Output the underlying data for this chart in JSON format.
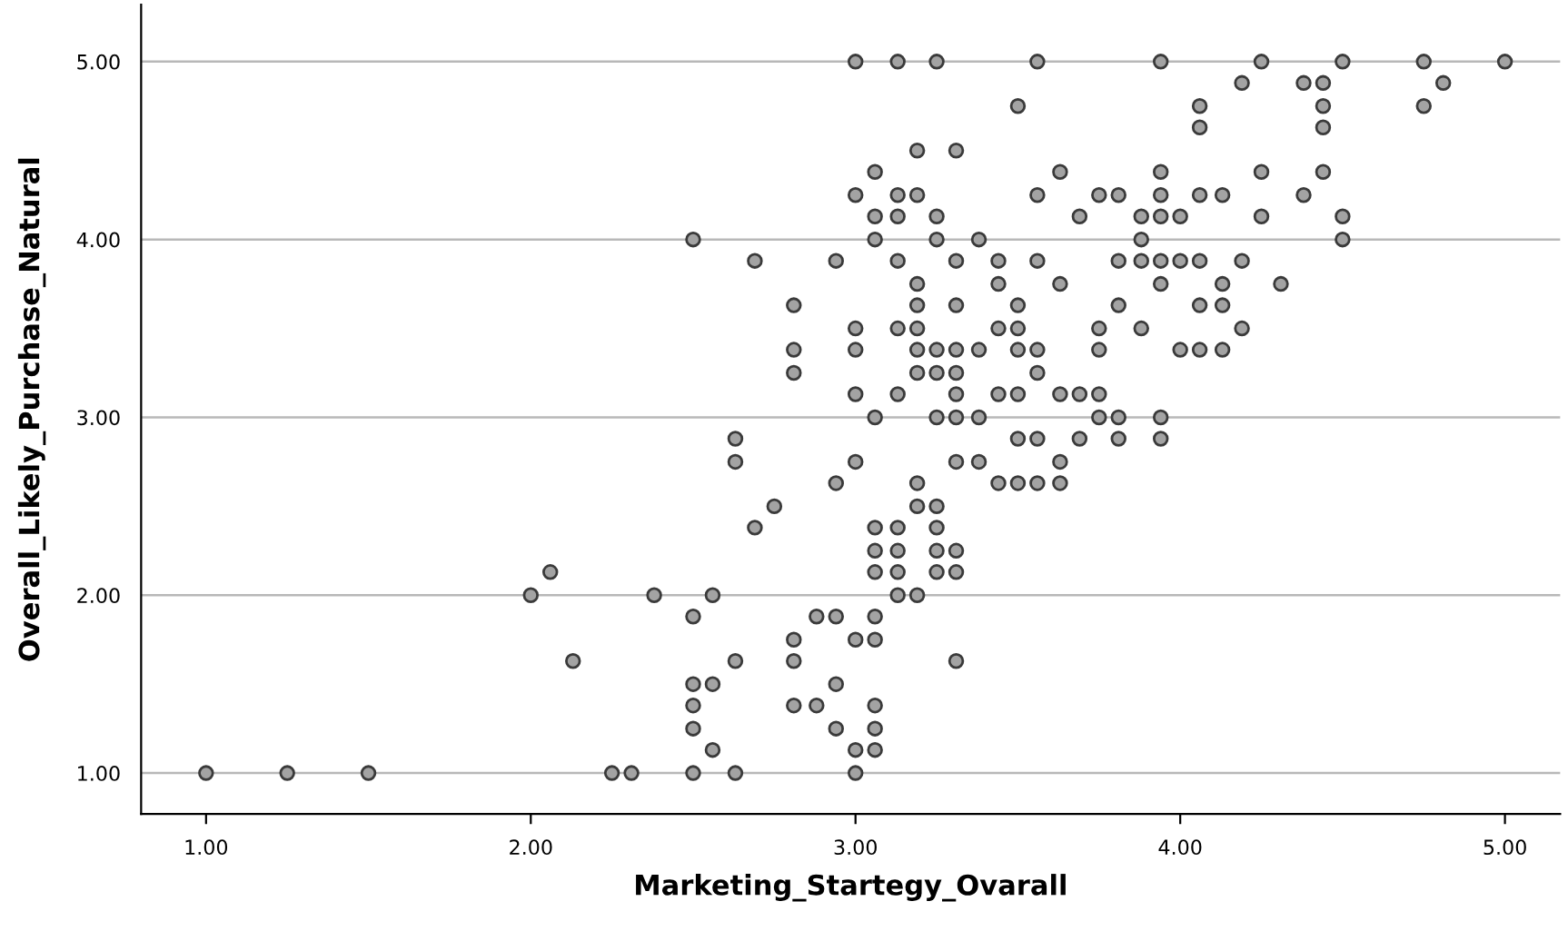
{
  "chart_data": {
    "type": "scatter",
    "xlabel": "Marketing_Startegy_Ovarall",
    "ylabel": "Overall_Likely_Purchase_Natural",
    "xlim": [
      0.8,
      5.17
    ],
    "ylim": [
      0.77,
      5.32
    ],
    "xticks": [
      {
        "value": 1,
        "label": "1.00"
      },
      {
        "value": 2,
        "label": "2.00"
      },
      {
        "value": 3,
        "label": "3.00"
      },
      {
        "value": 4,
        "label": "4.00"
      },
      {
        "value": 5,
        "label": "5.00"
      }
    ],
    "yticks": [
      {
        "value": 1,
        "label": "1.00"
      },
      {
        "value": 2,
        "label": "2.00"
      },
      {
        "value": 3,
        "label": "3.00"
      },
      {
        "value": 4,
        "label": "4.00"
      },
      {
        "value": 5,
        "label": "5.00"
      }
    ],
    "grid": "y",
    "marker": "circle",
    "series": [
      {
        "color": "#a3a3a3",
        "x": [
          1.0,
          1.25,
          1.5,
          2.25,
          2.31,
          2.5,
          2.63,
          3.0,
          2.56,
          3.0,
          3.06,
          2.5,
          2.94,
          3.06,
          2.5,
          2.81,
          2.88,
          3.06,
          2.5,
          2.56,
          2.94,
          2.13,
          2.63,
          2.81,
          3.31,
          2.81,
          3.0,
          3.06,
          2.5,
          2.88,
          2.94,
          3.06,
          2.0,
          2.38,
          2.56,
          3.13,
          3.19,
          2.06,
          3.06,
          3.13,
          3.25,
          3.31,
          3.06,
          3.13,
          3.25,
          3.31,
          2.69,
          3.06,
          3.13,
          3.25,
          2.75,
          3.19,
          3.25,
          2.94,
          3.19,
          3.44,
          3.5,
          3.56,
          3.63,
          2.63,
          3.0,
          3.31,
          3.38,
          3.63,
          2.63,
          3.5,
          3.56,
          3.69,
          3.81,
          3.94,
          3.06,
          3.25,
          3.31,
          3.38,
          3.75,
          3.81,
          3.94,
          3.0,
          3.13,
          3.31,
          3.44,
          3.5,
          3.63,
          3.69,
          3.75,
          2.81,
          3.19,
          3.25,
          3.31,
          3.56,
          2.81,
          3.0,
          3.19,
          3.25,
          3.31,
          3.38,
          3.5,
          3.56,
          3.75,
          4.0,
          4.06,
          4.13,
          3.0,
          3.13,
          3.19,
          3.44,
          3.5,
          3.75,
          3.88,
          4.19,
          2.81,
          3.19,
          3.31,
          3.5,
          3.81,
          4.06,
          4.13,
          3.19,
          3.44,
          3.63,
          3.94,
          4.13,
          4.31,
          2.69,
          2.94,
          3.13,
          3.31,
          3.44,
          3.56,
          3.81,
          3.88,
          3.94,
          4.0,
          4.06,
          4.19,
          2.5,
          3.06,
          3.25,
          3.38,
          3.88,
          4.5,
          3.06,
          3.13,
          3.25,
          3.69,
          3.88,
          3.94,
          4.0,
          4.25,
          4.5,
          3.0,
          3.13,
          3.19,
          3.56,
          3.75,
          3.81,
          3.94,
          4.06,
          4.13,
          4.38,
          3.06,
          3.63,
          3.94,
          4.25,
          4.44,
          3.19,
          3.31,
          4.06,
          4.44,
          3.5,
          4.06,
          4.44,
          4.75,
          4.19,
          4.38,
          4.44,
          4.81,
          3.0,
          3.13,
          3.25,
          3.56,
          3.94,
          4.25,
          4.5,
          4.75,
          5.0
        ],
        "values": [
          1.0,
          1.0,
          1.0,
          1.0,
          1.0,
          1.0,
          1.0,
          1.0,
          1.13,
          1.13,
          1.13,
          1.25,
          1.25,
          1.25,
          1.38,
          1.38,
          1.38,
          1.38,
          1.5,
          1.5,
          1.5,
          1.63,
          1.63,
          1.63,
          1.63,
          1.75,
          1.75,
          1.75,
          1.88,
          1.88,
          1.88,
          1.88,
          2.0,
          2.0,
          2.0,
          2.0,
          2.0,
          2.13,
          2.13,
          2.13,
          2.13,
          2.13,
          2.25,
          2.25,
          2.25,
          2.25,
          2.38,
          2.38,
          2.38,
          2.38,
          2.5,
          2.5,
          2.5,
          2.63,
          2.63,
          2.63,
          2.63,
          2.63,
          2.63,
          2.75,
          2.75,
          2.75,
          2.75,
          2.75,
          2.88,
          2.88,
          2.88,
          2.88,
          2.88,
          2.88,
          3.0,
          3.0,
          3.0,
          3.0,
          3.0,
          3.0,
          3.0,
          3.13,
          3.13,
          3.13,
          3.13,
          3.13,
          3.13,
          3.13,
          3.13,
          3.25,
          3.25,
          3.25,
          3.25,
          3.25,
          3.38,
          3.38,
          3.38,
          3.38,
          3.38,
          3.38,
          3.38,
          3.38,
          3.38,
          3.38,
          3.38,
          3.38,
          3.5,
          3.5,
          3.5,
          3.5,
          3.5,
          3.5,
          3.5,
          3.5,
          3.63,
          3.63,
          3.63,
          3.63,
          3.63,
          3.63,
          3.63,
          3.75,
          3.75,
          3.75,
          3.75,
          3.75,
          3.75,
          3.88,
          3.88,
          3.88,
          3.88,
          3.88,
          3.88,
          3.88,
          3.88,
          3.88,
          3.88,
          3.88,
          3.88,
          4.0,
          4.0,
          4.0,
          4.0,
          4.0,
          4.0,
          4.13,
          4.13,
          4.13,
          4.13,
          4.13,
          4.13,
          4.13,
          4.13,
          4.13,
          4.25,
          4.25,
          4.25,
          4.25,
          4.25,
          4.25,
          4.25,
          4.25,
          4.25,
          4.25,
          4.38,
          4.38,
          4.38,
          4.38,
          4.38,
          4.5,
          4.5,
          4.63,
          4.63,
          4.75,
          4.75,
          4.75,
          4.75,
          4.88,
          4.88,
          4.88,
          4.88,
          5.0,
          5.0,
          5.0,
          5.0,
          5.0,
          5.0,
          5.0,
          5.0,
          5.0
        ]
      }
    ]
  }
}
